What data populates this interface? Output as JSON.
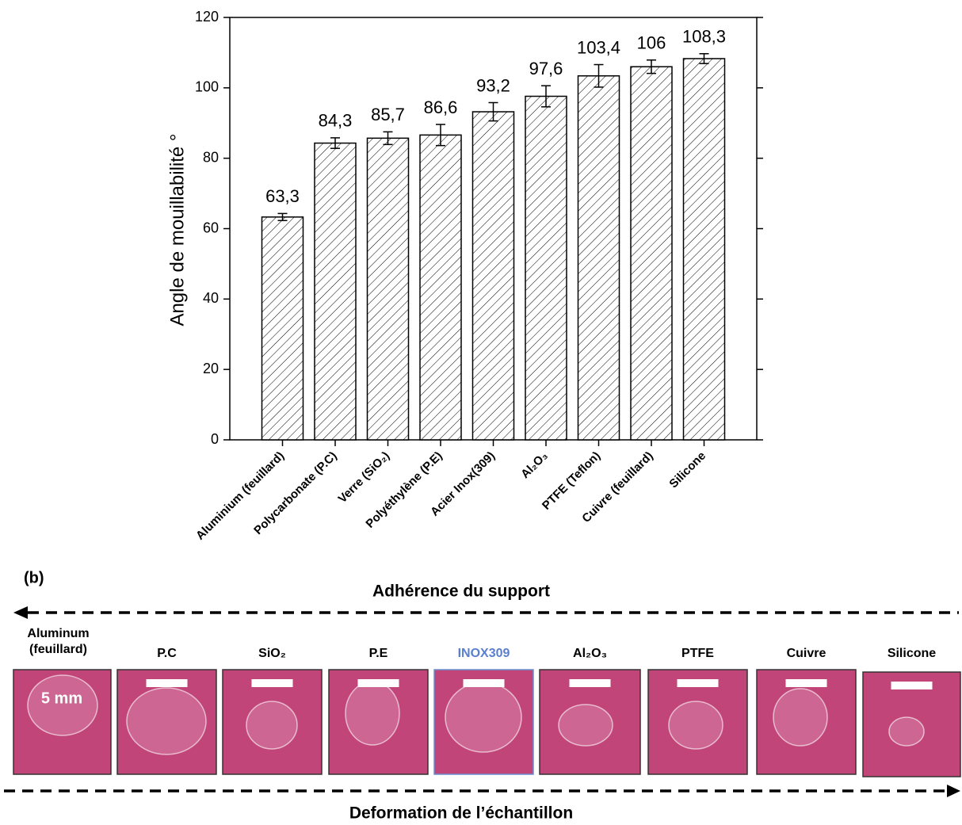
{
  "chart_data": {
    "type": "bar",
    "y_label": "Angle de mouillabilité °",
    "categories": [
      "Aluminium (feuillard)",
      "Polycarbonate (P.C)",
      "Verre (SiO₂)",
      "Polyéthylène (P.E)",
      "Acier Inox(309)",
      "Al₂O₃",
      "PTFE (Teflon)",
      "Cuivre (feuillard)",
      "Silicone"
    ],
    "values": [
      63.3,
      84.3,
      85.7,
      86.6,
      93.2,
      97.6,
      103.4,
      106,
      108.3
    ],
    "value_labels": [
      "63,3",
      "84,3",
      "85,7",
      "86,6",
      "93,2",
      "97,6",
      "103,4",
      "106",
      "108,3"
    ],
    "errors": [
      1,
      1.5,
      1.8,
      3,
      2.6,
      3,
      3.2,
      1.9,
      1.4
    ],
    "color": "#000000",
    "ylim": [
      0,
      120
    ],
    "yticks": [
      0,
      20,
      40,
      60,
      80,
      100,
      120
    ]
  },
  "panel_b": {
    "label": "(b)",
    "top_arrow": "Adhérence du support",
    "bottom_arrow": "Deformation de l’échantillon",
    "scale": "5 mm",
    "samples": [
      "Aluminum (feuillard)",
      "P.C",
      "SiO₂",
      "P.E",
      "INOX309",
      "Al₂O₃",
      "PTFE",
      "Cuivre",
      "Silicone"
    ]
  }
}
